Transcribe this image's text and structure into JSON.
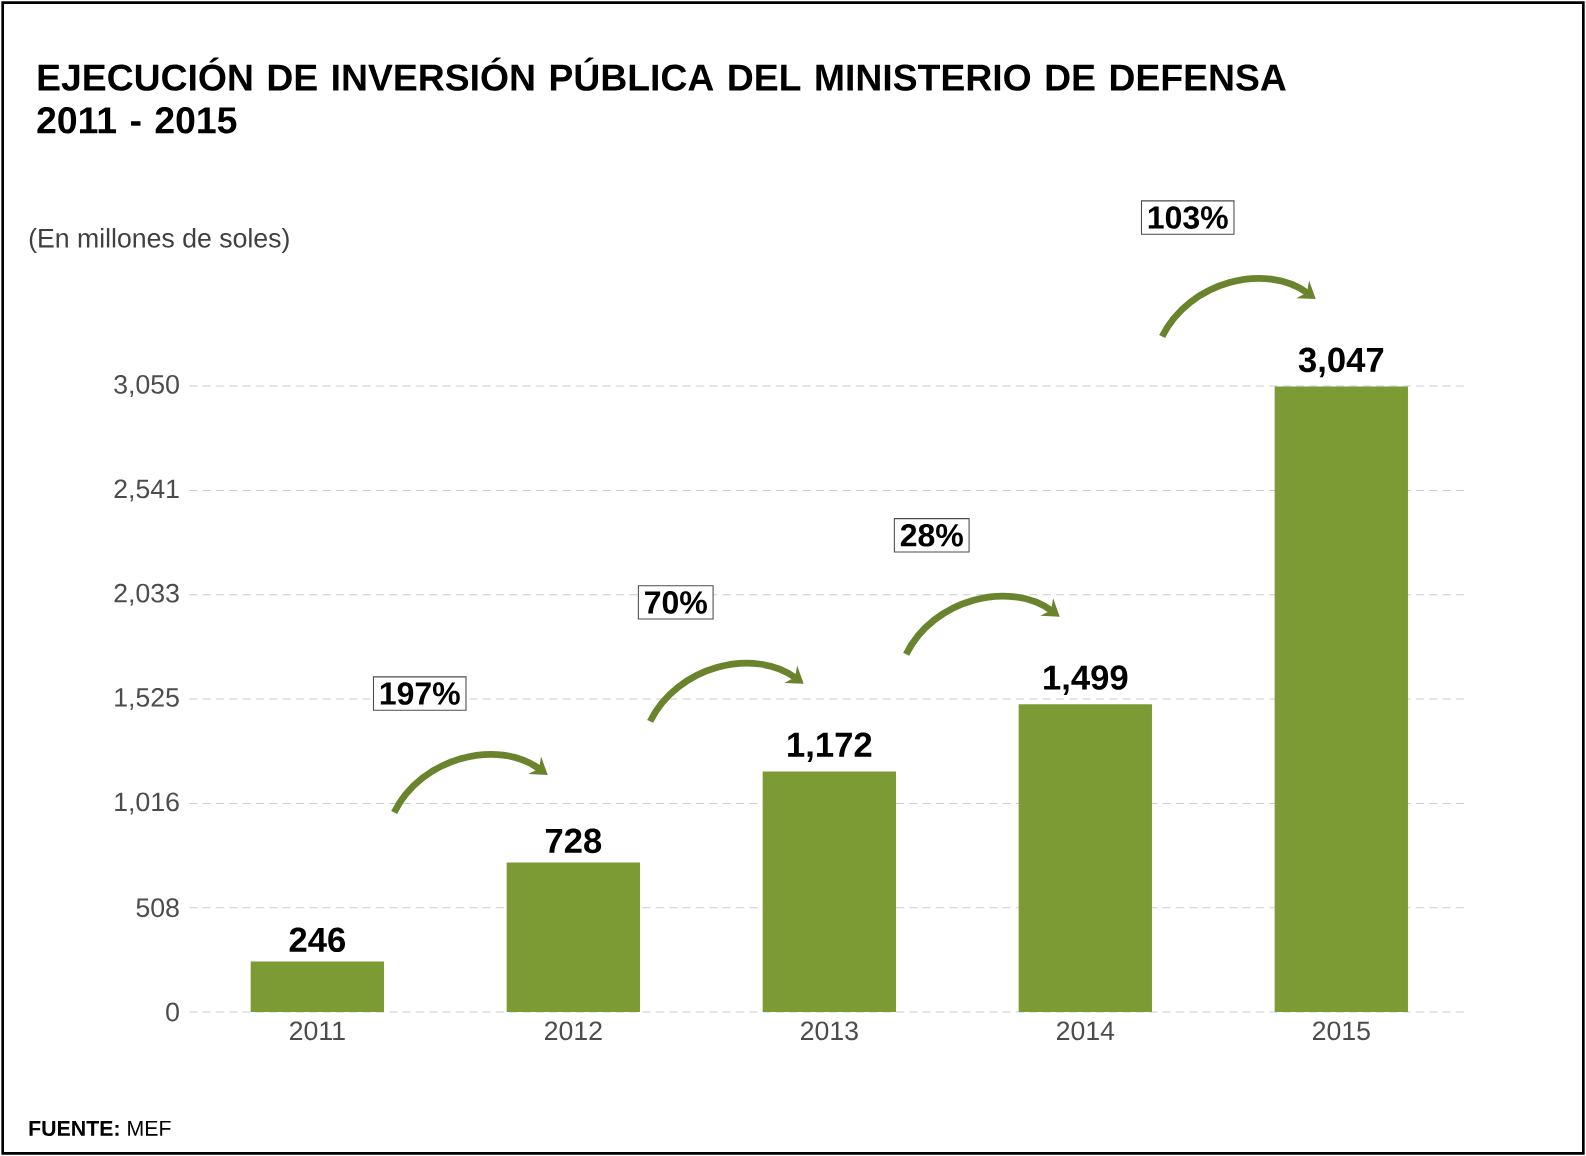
{
  "chart_data": {
    "type": "bar",
    "title": "EJECUCIÓN DE INVERSIÓN PÚBLICA DEL MINISTERIO DE DEFENSA 2011 - 2015",
    "ylabel": "(En millones de soles)",
    "categories": [
      "2011",
      "2012",
      "2013",
      "2014",
      "2015"
    ],
    "values": [
      246,
      728,
      1172,
      1499,
      3047
    ],
    "value_labels": [
      "246",
      "728",
      "1,172",
      "1,499",
      "3,047"
    ],
    "color": "#7d9b35",
    "ylim": [
      0,
      3050
    ],
    "yticks": [
      0,
      {
        "value": 508,
        "label": "508"
      },
      {
        "value": 1016,
        "label": "1,016"
      },
      {
        "value": 1525,
        "label": "1,525"
      },
      {
        "value": 2033,
        "label": "2,033"
      },
      {
        "value": 2541,
        "label": "2,541"
      },
      {
        "value": 3050,
        "label": "3,050"
      }
    ],
    "grid": "y",
    "annotations": [
      "197%",
      "70%",
      "28%",
      "103%",
      "**FUENTE:** MEF"
    ]
  }
}
